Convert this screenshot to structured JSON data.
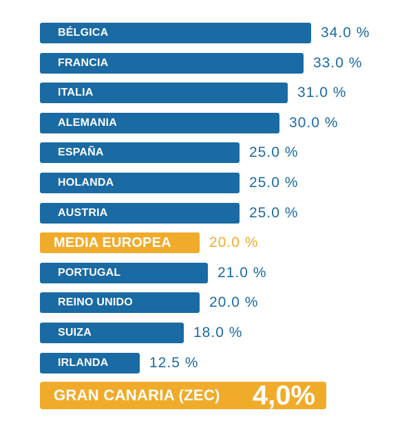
{
  "chart_data": {
    "type": "bar",
    "orientation": "horizontal",
    "categories": [
      "BÉLGICA",
      "FRANCIA",
      "ITALIA",
      "ALEMANIA",
      "ESPAÑA",
      "HOLANDA",
      "AUSTRIA",
      "MEDIA EUROPEA",
      "PORTUGAL",
      "REINO UNIDO",
      "SUIZA",
      "IRLANDA"
    ],
    "values": [
      34.0,
      33.0,
      31.0,
      30.0,
      25.0,
      25.0,
      25.0,
      20.0,
      21.0,
      20.0,
      18.0,
      12.5
    ],
    "value_labels": [
      "34.0 %",
      "33.0 %",
      "31.0 %",
      "30.0 %",
      "25.0 %",
      "25.0 %",
      "25.0 %",
      "20.0 %",
      "21.0 %",
      "20.0 %",
      "18.0 %",
      "12.5 %"
    ],
    "highlighted_categories": [
      "MEDIA EUROPEA"
    ],
    "colors": {
      "bar": "#1a6aa3",
      "highlight": "#f1ab2a",
      "value_text": "#1a6aa3",
      "label_text": "#ffffff"
    },
    "footer": {
      "label": "GRAN CANARIA (ZEC)",
      "value": 4.0,
      "value_label": "4,0%"
    },
    "grid": false,
    "legend": "none"
  }
}
